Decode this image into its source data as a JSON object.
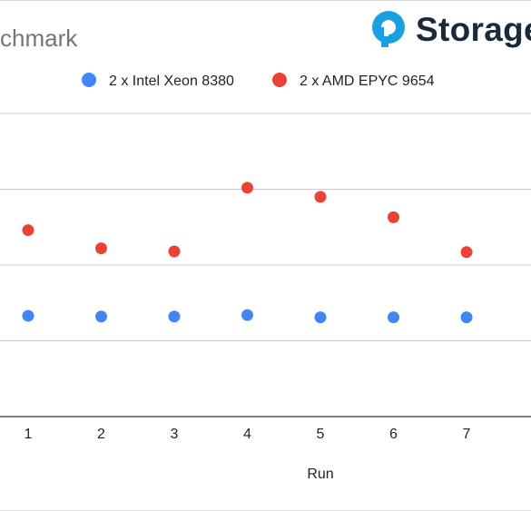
{
  "logo": {
    "text": "Storage",
    "icon": "storagereview-logo-icon",
    "color": "#1a2a3a",
    "icon_color": "#1aa0e0"
  },
  "chart_data": {
    "type": "scatter",
    "title": "chmark",
    "xlabel": "Run",
    "ylabel": "",
    "categories": [
      "1",
      "2",
      "3",
      "4",
      "5",
      "6",
      "7"
    ],
    "legend_position": "top",
    "grid": true,
    "ylim": [
      0,
      4
    ],
    "series": [
      {
        "name": "2 x Intel Xeon 8380",
        "color": "#4285f4",
        "values": [
          1.33,
          1.32,
          1.32,
          1.34,
          1.31,
          1.31,
          1.31
        ]
      },
      {
        "name": "2 x AMD EPYC 9654",
        "color": "#ea4335",
        "values": [
          2.46,
          2.22,
          2.18,
          3.02,
          2.9,
          2.63,
          2.17
        ]
      }
    ]
  }
}
